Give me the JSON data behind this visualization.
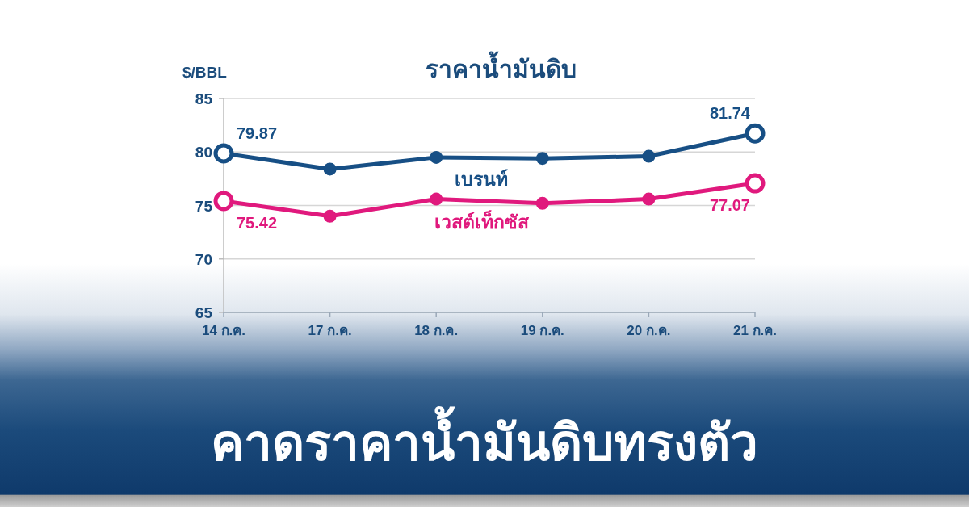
{
  "chart_data": {
    "type": "line",
    "title": "ราคาน้ำมันดิบ",
    "ylabel": "$/BBL",
    "annotations": [
      "คาดราคาน้ำมันดิบทรงตัว"
    ],
    "categories": [
      "14 ก.ค.",
      "17 ก.ค.",
      "18 ก.ค.",
      "19 ก.ค.",
      "20 ก.ค.",
      "21 ก.ค."
    ],
    "series": [
      {
        "name": "เบรนท์",
        "color": "#174f85",
        "values": [
          79.87,
          78.4,
          79.5,
          79.4,
          79.6,
          81.74
        ],
        "value_labels": [
          "79.87",
          null,
          null,
          null,
          null,
          "81.74"
        ]
      },
      {
        "name": "เวสต์เท็กซัส",
        "color": "#e0197d",
        "values": [
          75.42,
          74.0,
          75.6,
          75.2,
          75.6,
          77.07
        ],
        "value_labels": [
          "75.42",
          null,
          null,
          null,
          null,
          "77.07"
        ]
      }
    ],
    "ylim": [
      65,
      85
    ],
    "yticks": [
      65,
      70,
      75,
      80,
      85
    ],
    "grid": "y",
    "marker": "circle",
    "line_style": "solid"
  }
}
